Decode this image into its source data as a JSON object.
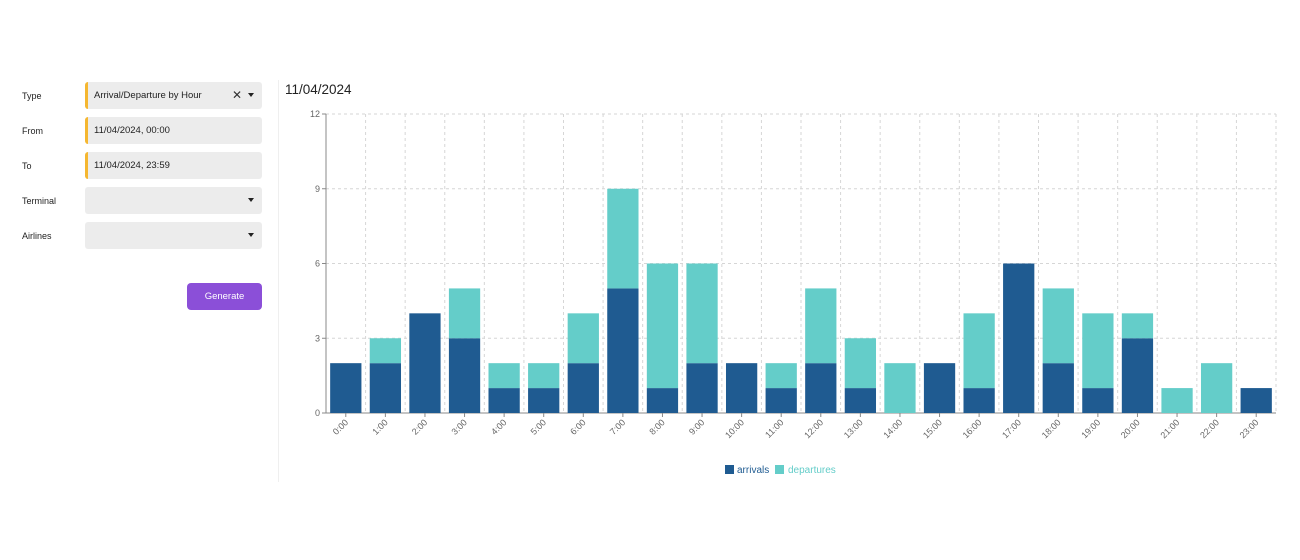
{
  "form": {
    "type_label": "Type",
    "type_value": "Arrival/Departure by Hour",
    "from_label": "From",
    "from_value": "11/04/2024, 00:00",
    "to_label": "To",
    "to_value": "11/04/2024, 23:59",
    "terminal_label": "Terminal",
    "terminal_value": "",
    "airlines_label": "Airlines",
    "airlines_value": "",
    "generate_label": "Generate",
    "clear_glyph": "✕"
  },
  "colors": {
    "required_accent": "#f5b731",
    "generate_button": "#8b4fd8",
    "arrivals": "#1f5b91",
    "departures": "#64cdc9"
  },
  "chart_data": {
    "type": "bar",
    "stacked": true,
    "title": "11/04/2024",
    "xlabel": "",
    "ylabel": "",
    "categories": [
      "0:00",
      "1:00",
      "2:00",
      "3:00",
      "4:00",
      "5:00",
      "6:00",
      "7:00",
      "8:00",
      "9:00",
      "10:00",
      "11:00",
      "12:00",
      "13:00",
      "14:00",
      "15:00",
      "16:00",
      "17:00",
      "18:00",
      "19:00",
      "20:00",
      "21:00",
      "22:00",
      "23:00"
    ],
    "series": [
      {
        "name": "arrivals",
        "color": "#1f5b91",
        "values": [
          2,
          2,
          4,
          3,
          1,
          1,
          2,
          5,
          1,
          2,
          2,
          1,
          2,
          1,
          0,
          2,
          1,
          6,
          2,
          1,
          3,
          0,
          0,
          1
        ]
      },
      {
        "name": "departures",
        "color": "#64cdc9",
        "values": [
          0,
          1,
          0,
          2,
          1,
          1,
          2,
          4,
          5,
          4,
          0,
          1,
          3,
          2,
          2,
          0,
          3,
          0,
          3,
          3,
          1,
          1,
          2,
          0
        ]
      }
    ],
    "ylim": [
      0,
      12
    ],
    "yticks": [
      0,
      3,
      6,
      9,
      12
    ],
    "grid": true,
    "legend": "bottom-center"
  }
}
